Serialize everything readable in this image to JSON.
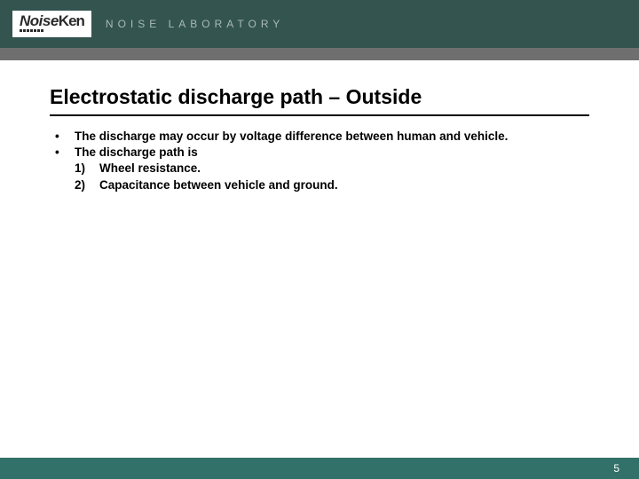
{
  "header": {
    "logo_main": "Noise",
    "logo_suffix": "Ken",
    "tagline": "NOISE LABORATORY",
    "bar_color": "#34544f",
    "strip_color": "#6f6f6f",
    "tagline_color": "#a8bab6"
  },
  "slide": {
    "title": "Electrostatic discharge path – Outside",
    "title_fontsize": 23,
    "title_color": "#000000",
    "body_fontsize": 13.5,
    "body_color": "#000000",
    "bullets": [
      {
        "text": "The discharge may occur by voltage difference between human and vehicle."
      },
      {
        "text": "The discharge path is",
        "sub": [
          {
            "num": "1)",
            "text": "Wheel resistance."
          },
          {
            "num": "2)",
            "text": "Capacitance between vehicle and ground."
          }
        ]
      }
    ]
  },
  "footer": {
    "page_number": "5",
    "bar_color": "#327169",
    "text_color": "#ffffff"
  },
  "background_color": "#ffffff"
}
